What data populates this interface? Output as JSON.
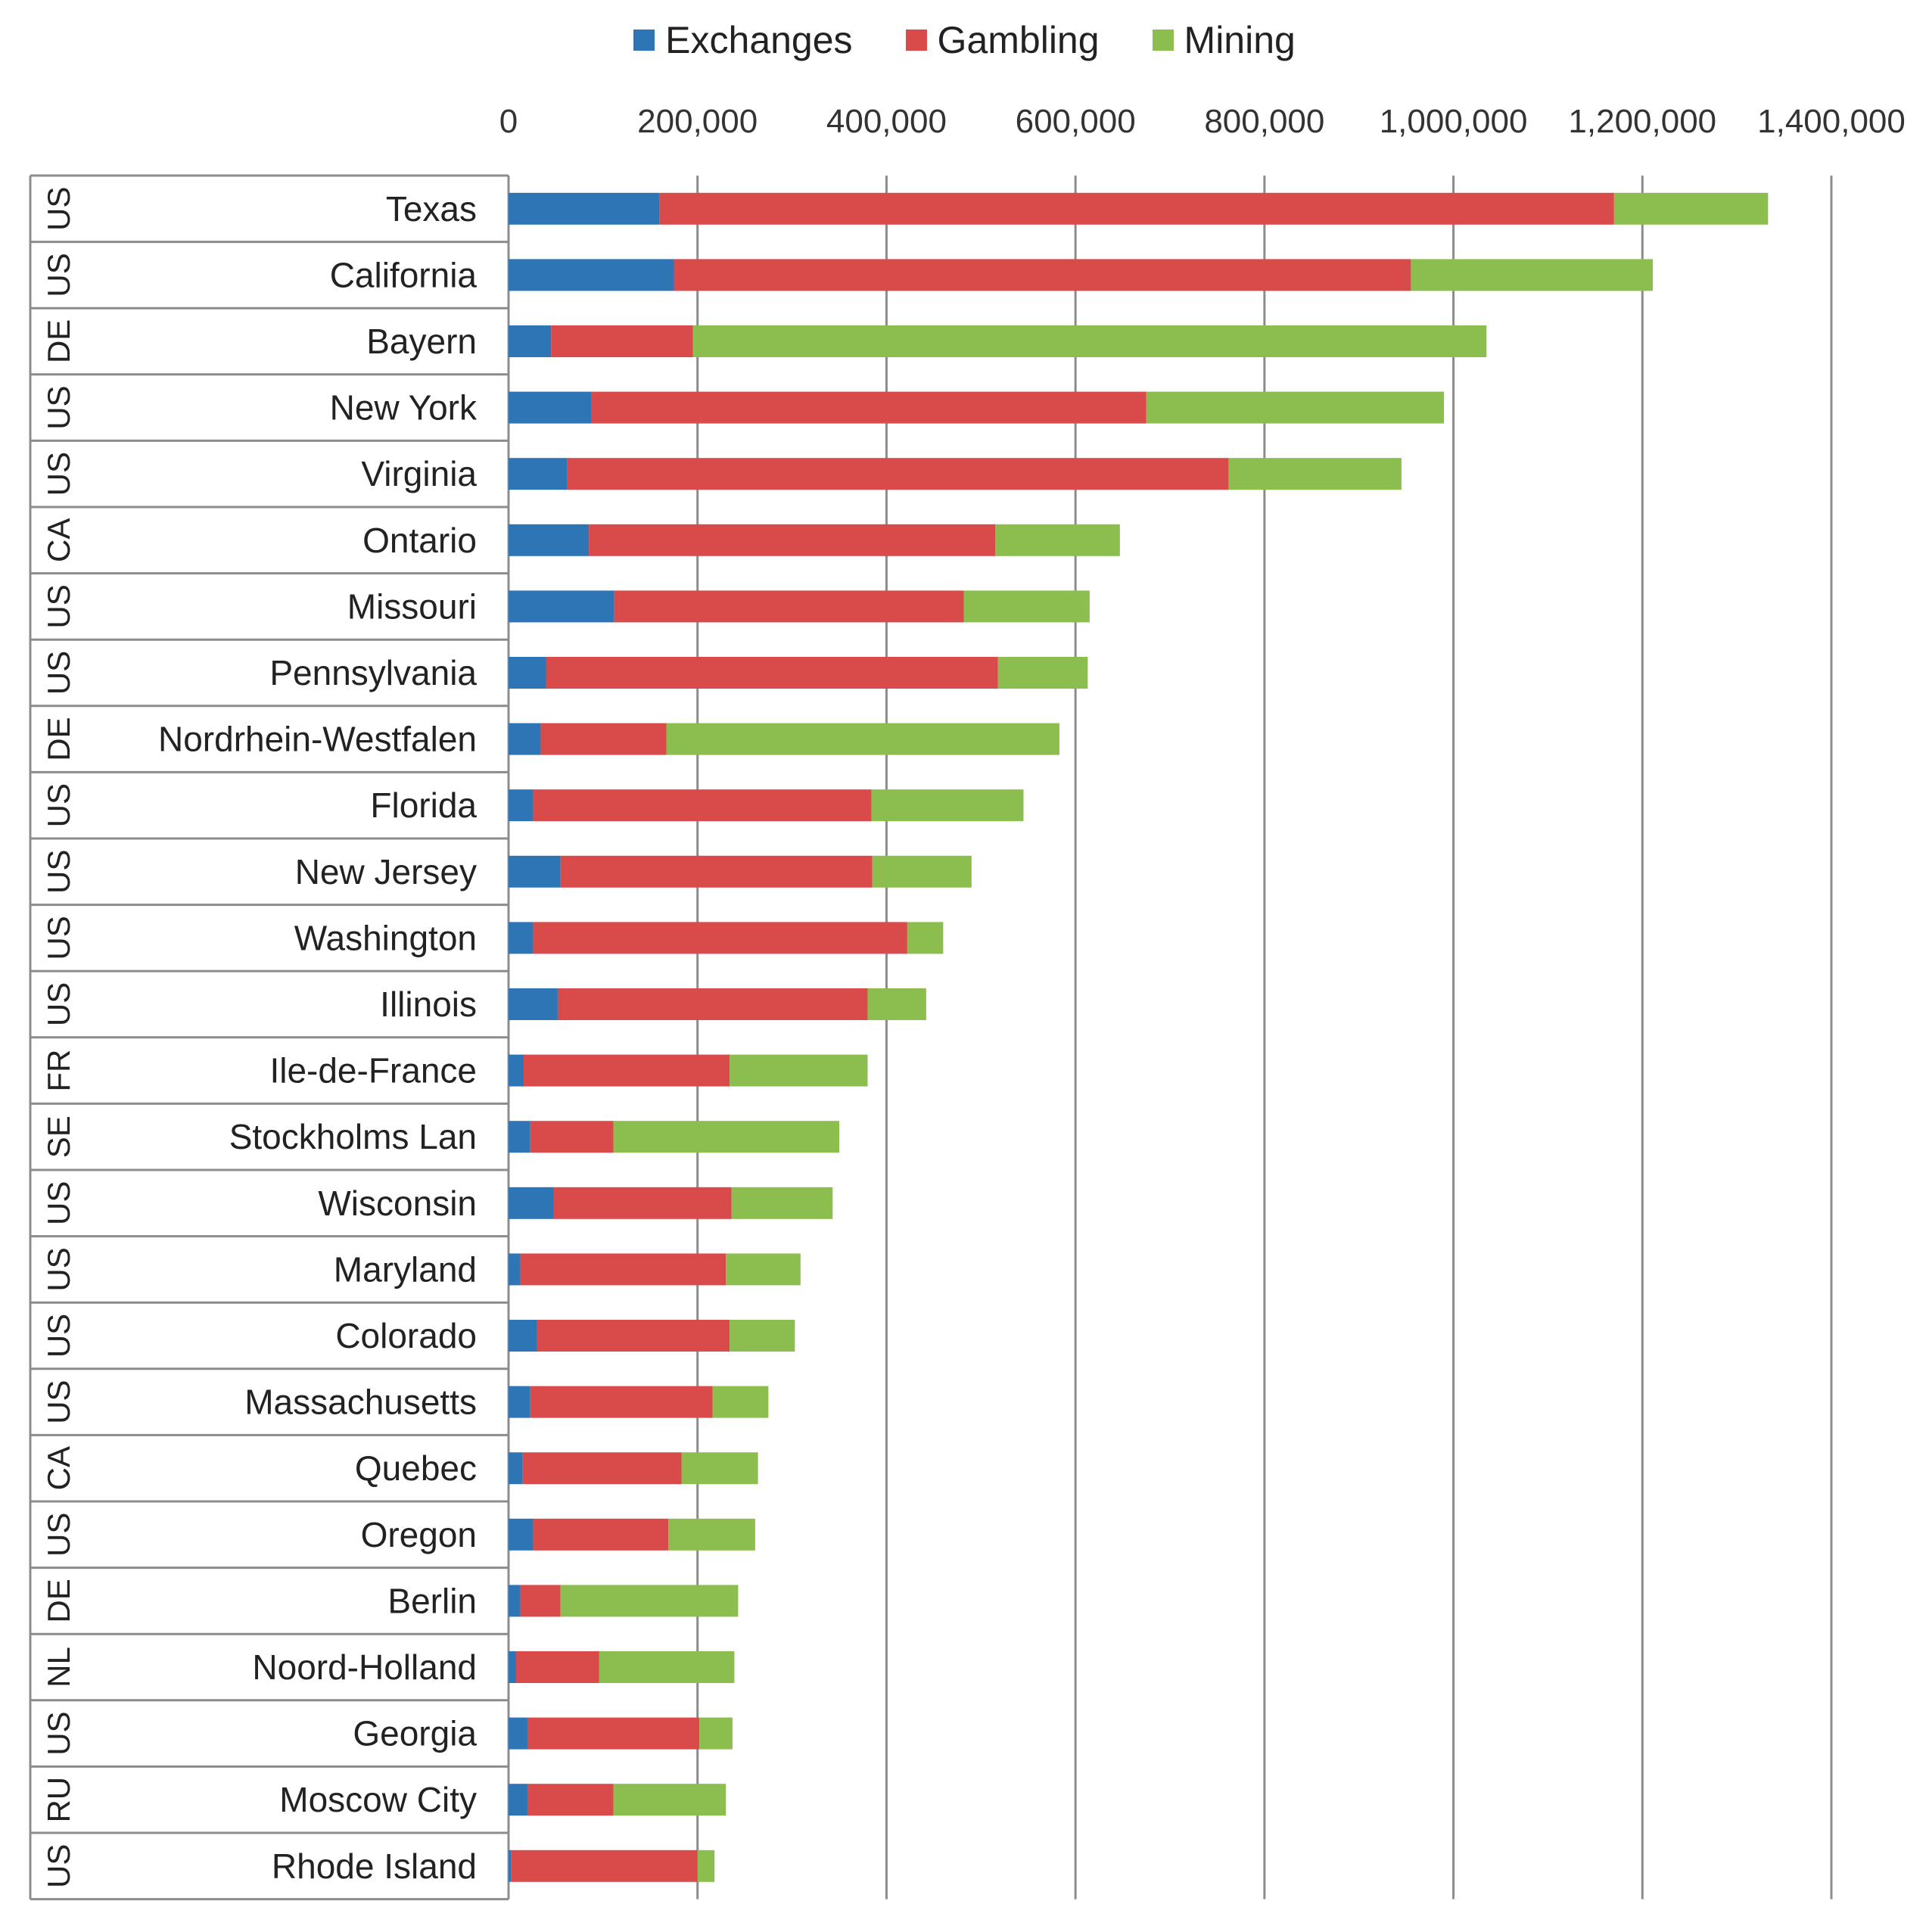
{
  "chart_data": {
    "type": "bar",
    "orientation": "horizontal",
    "stacked": true,
    "legend_position": "top",
    "x_axis_position": "top",
    "grid": true,
    "xlim": [
      0,
      1400000
    ],
    "x_ticks": [
      0,
      200000,
      400000,
      600000,
      800000,
      1000000,
      1200000,
      1400000
    ],
    "x_tick_labels": [
      "0",
      "200,000",
      "400,000",
      "600,000",
      "800,000",
      "1,000,000",
      "1,200,000",
      "1,400,000"
    ],
    "categories": [
      "Texas",
      "California",
      "Bayern",
      "New York",
      "Virginia",
      "Ontario",
      "Missouri",
      "Pennsylvania",
      "Nordrhein-Westfalen",
      "Florida",
      "New Jersey",
      "Washington",
      "Illinois",
      "Ile-de-France",
      "Stockholms Lan",
      "Wisconsin",
      "Maryland",
      "Colorado",
      "Massachusetts",
      "Quebec",
      "Oregon",
      "Berlin",
      "Noord-Holland",
      "Georgia",
      "Moscow City",
      "Rhode Island"
    ],
    "country_codes": [
      "US",
      "US",
      "DE",
      "US",
      "US",
      "CA",
      "US",
      "US",
      "DE",
      "US",
      "US",
      "US",
      "US",
      "FR",
      "SE",
      "US",
      "US",
      "US",
      "US",
      "CA",
      "US",
      "DE",
      "NL",
      "US",
      "RU",
      "US"
    ],
    "series": [
      {
        "name": "Exchanges",
        "color": "#2e75b6",
        "values": [
          160000,
          175000,
          45000,
          88000,
          62000,
          85000,
          112000,
          40000,
          34000,
          26000,
          55000,
          26000,
          52000,
          16000,
          23000,
          48000,
          12000,
          30000,
          23000,
          15000,
          26000,
          12000,
          8000,
          20000,
          20000,
          3000
        ]
      },
      {
        "name": "Gambling",
        "color": "#d94a4a",
        "values": [
          1010000,
          780000,
          150000,
          587000,
          700000,
          430000,
          370000,
          478000,
          133000,
          358000,
          330000,
          396000,
          328000,
          218000,
          88000,
          188000,
          218000,
          204000,
          193000,
          168000,
          143000,
          43000,
          88000,
          182000,
          91000,
          197000
        ]
      },
      {
        "name": "Mining",
        "color": "#8bbd4f",
        "values": [
          163000,
          256000,
          840000,
          315000,
          183000,
          132000,
          133000,
          95000,
          416000,
          161000,
          105000,
          38000,
          62000,
          146000,
          239000,
          107000,
          79000,
          69000,
          59000,
          81000,
          92000,
          188000,
          143000,
          35000,
          119000,
          18000
        ]
      }
    ]
  }
}
